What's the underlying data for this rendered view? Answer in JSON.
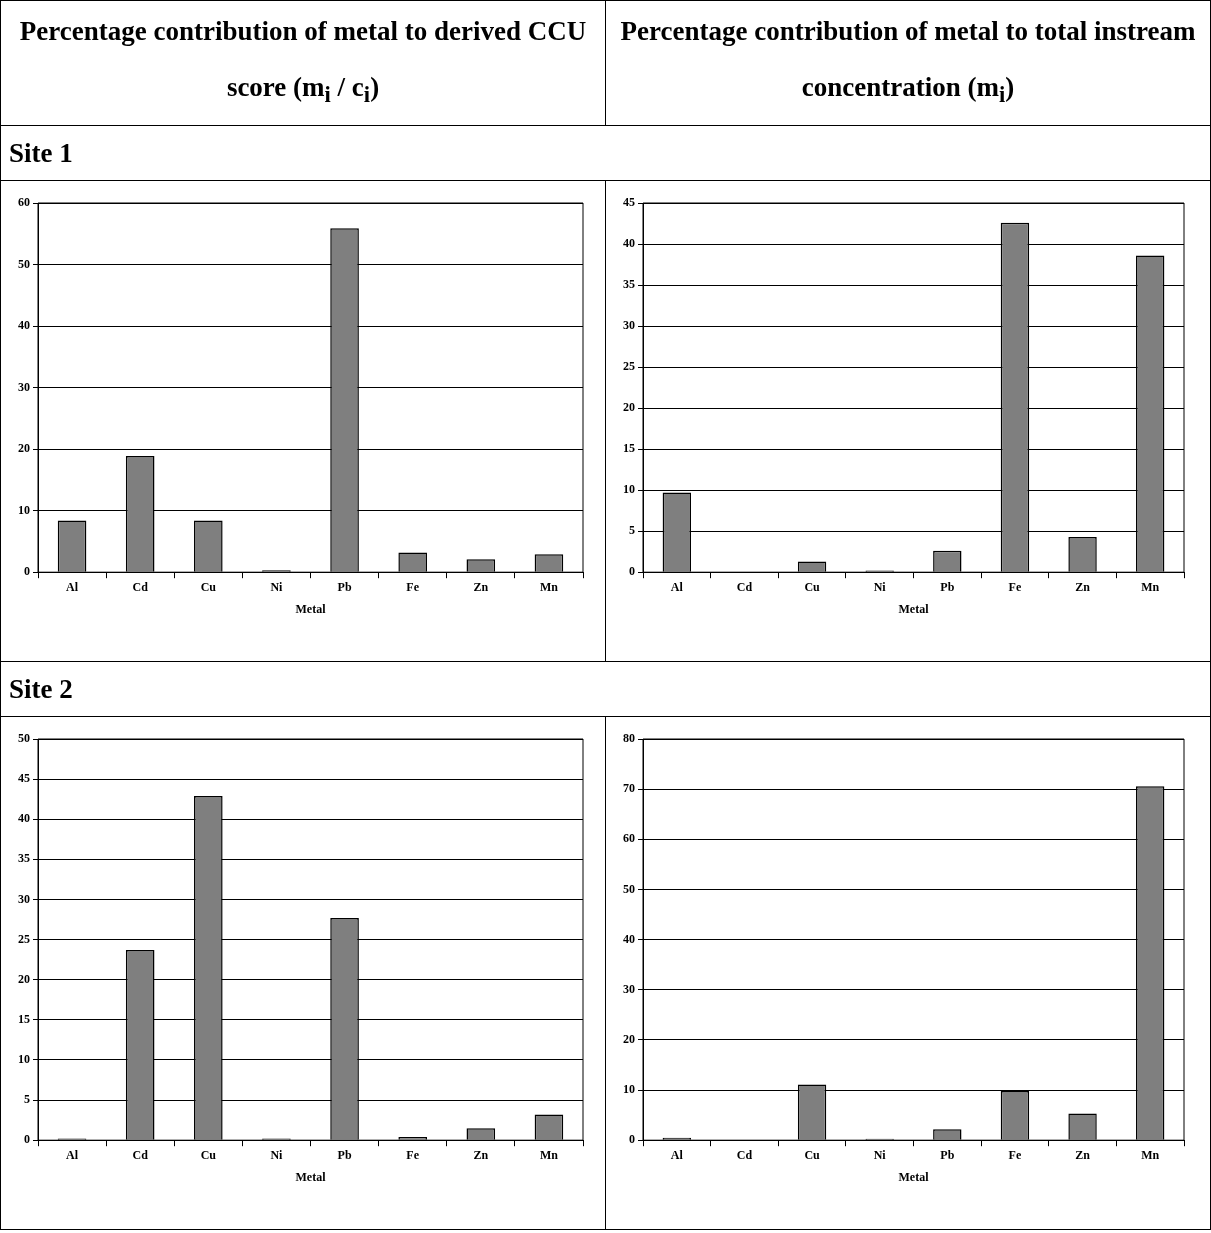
{
  "chart_data": [
    {
      "type": "bar",
      "title": "Percentage contribution of metal to derived CCU score (m$_{i}$ / c$_{i}$)",
      "subtitle": "Site 1",
      "xlabel": "Metal",
      "categories": [
        "Al",
        "Cd",
        "Cu",
        "Ni",
        "Pb",
        "Fe",
        "Zn",
        "Mn"
      ],
      "values": [
        8.4,
        18.9,
        8.4,
        0.3,
        55.9,
        3.2,
        2.1,
        2.9
      ],
      "color": "#7f7f7f",
      "ylim": [
        0,
        60
      ],
      "yticks": [
        0,
        10,
        20,
        30,
        40,
        50,
        60
      ],
      "grid": "y",
      "legend": false
    },
    {
      "type": "bar",
      "title": "Percentage contribution of metal to total instream concentration (m$_{i}$)",
      "xlabel": "Metal",
      "categories": [
        "Al",
        "Cd",
        "Cu",
        "Ni",
        "Pb",
        "Fe",
        "Zn",
        "Mn"
      ],
      "values": [
        9.7,
        0,
        1.3,
        0.2,
        2.6,
        42.6,
        4.3,
        38.6
      ],
      "color": "#7f7f7f",
      "ylim": [
        0,
        45
      ],
      "yticks": [
        0,
        5,
        10,
        15,
        20,
        25,
        30,
        35,
        40,
        45
      ],
      "grid": "y",
      "legend": false
    },
    {
      "type": "bar",
      "subtitle": "Site 2",
      "xlabel": "Metal",
      "categories": [
        "Al",
        "Cd",
        "Cu",
        "Ni",
        "Pb",
        "Fe",
        "Zn",
        "Mn"
      ],
      "values": [
        0.2,
        23.7,
        42.9,
        0.2,
        27.7,
        0.4,
        1.5,
        3.2
      ],
      "color": "#7f7f7f",
      "ylim": [
        0,
        50
      ],
      "yticks": [
        0,
        5,
        10,
        15,
        20,
        25,
        30,
        35,
        40,
        45,
        50
      ],
      "grid": "y",
      "legend": false
    },
    {
      "type": "bar",
      "xlabel": "Metal",
      "categories": [
        "Al",
        "Cd",
        "Cu",
        "Ni",
        "Pb",
        "Fe",
        "Zn",
        "Mn"
      ],
      "values": [
        0.5,
        0.1,
        11.1,
        0.3,
        2.2,
        9.8,
        5.3,
        70.6
      ],
      "color": "#7f7f7f",
      "ylim": [
        0,
        80
      ],
      "yticks": [
        0,
        10,
        20,
        30,
        40,
        50,
        60,
        70,
        80
      ],
      "grid": "y",
      "legend": false
    }
  ]
}
